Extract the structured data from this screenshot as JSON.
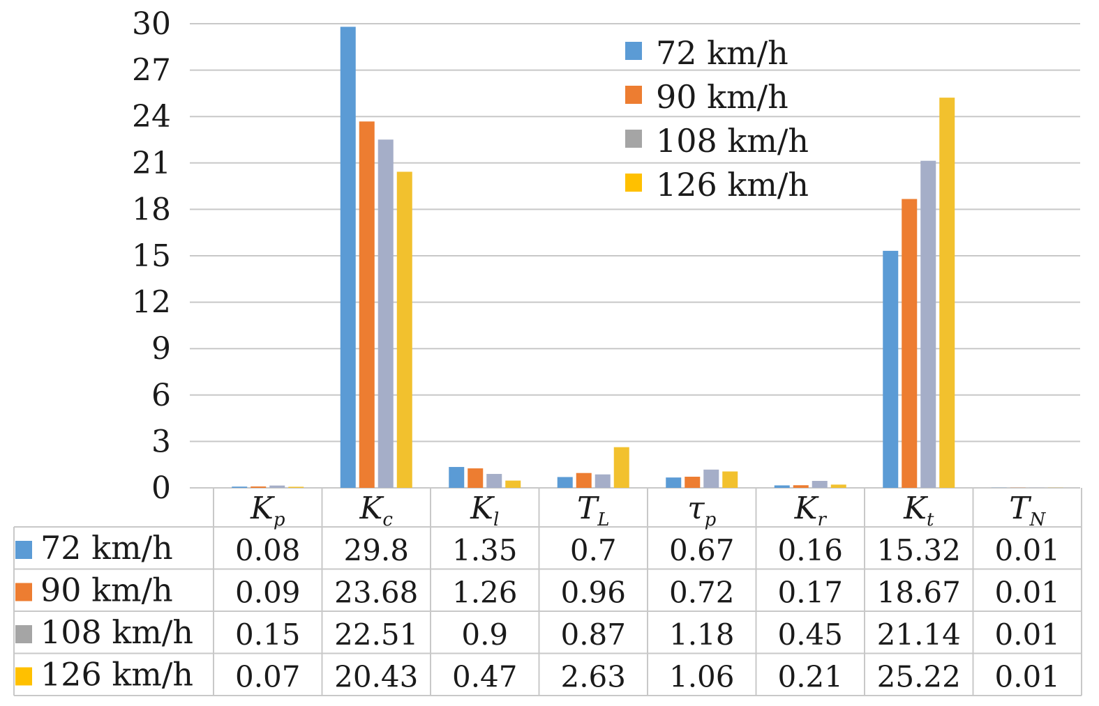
{
  "chart_data": {
    "type": "bar",
    "categories": [
      {
        "symbol": "K",
        "sub": "p"
      },
      {
        "symbol": "K",
        "sub": "c"
      },
      {
        "symbol": "K",
        "sub": "l"
      },
      {
        "symbol": "T",
        "sub": "L"
      },
      {
        "symbol": "τ",
        "sub": "p"
      },
      {
        "symbol": "K",
        "sub": "r"
      },
      {
        "symbol": "K",
        "sub": "t"
      },
      {
        "symbol": "T",
        "sub": "N"
      }
    ],
    "series": [
      {
        "name": "72 km/h",
        "color": "#5b9bd5",
        "values": [
          0.08,
          29.8,
          1.35,
          0.7,
          0.67,
          0.16,
          15.32,
          0.01
        ],
        "labels": [
          "0.08",
          "29.8",
          "1.35",
          "0.7",
          "0.67",
          "0.16",
          "15.32",
          "0.01"
        ]
      },
      {
        "name": "90 km/h",
        "color": "#ed7d31",
        "values": [
          0.09,
          23.68,
          1.26,
          0.96,
          0.72,
          0.17,
          18.67,
          0.01
        ],
        "labels": [
          "0.09",
          "23.68",
          "1.26",
          "0.96",
          "0.72",
          "0.17",
          "18.67",
          "0.01"
        ]
      },
      {
        "name": "108 km/h",
        "color": "#a5a5a5",
        "values": [
          0.15,
          22.51,
          0.9,
          0.87,
          1.18,
          0.45,
          21.14,
          0.01
        ],
        "labels": [
          "0.15",
          "22.51",
          "0.9",
          "0.87",
          "1.18",
          "0.45",
          "21.14",
          "0.01"
        ]
      },
      {
        "name": "126 km/h",
        "color": "#ffc000",
        "values": [
          0.07,
          20.43,
          0.47,
          2.63,
          1.06,
          0.21,
          25.22,
          0.01
        ],
        "labels": [
          "0.07",
          "20.43",
          "0.47",
          "2.63",
          "1.06",
          "0.21",
          "25.22",
          "0.01"
        ]
      }
    ],
    "yticks": [
      "0",
      "3",
      "6",
      "9",
      "12",
      "15",
      "18",
      "21",
      "24",
      "27",
      "30"
    ],
    "ylim": [
      0,
      30
    ],
    "grid": true,
    "legend_position": "top-right",
    "data_table": true,
    "bar_series_colors": [
      "#5b9bd5",
      "#ed7d31",
      "#a5aec8",
      "#f2c12e"
    ],
    "grid_color": "#c8c8c8",
    "text_color": "#1a1a1a"
  }
}
